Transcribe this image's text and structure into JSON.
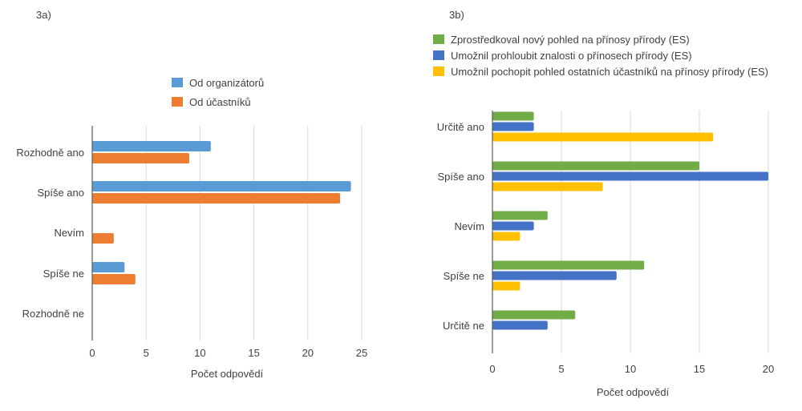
{
  "chart_data": [
    {
      "type": "bar",
      "orientation": "horizontal",
      "panel_label": "3a)",
      "categories": [
        "Rozhodně ano",
        "Spíše ano",
        "Nevím",
        "Spíše ne",
        "Rozhodně ne"
      ],
      "series": [
        {
          "name": "Od organizátorů",
          "color": "#5B9BD5",
          "values": [
            11,
            24,
            0,
            3,
            0
          ]
        },
        {
          "name": "Od účastníků",
          "color": "#ED7D31",
          "values": [
            9,
            23,
            2,
            4,
            0
          ]
        }
      ],
      "xlabel": "Počet odpovědí",
      "xlim": [
        0,
        25
      ],
      "xticks": [
        "0",
        "5",
        "10",
        "15",
        "20",
        "25"
      ],
      "grid": true,
      "legend": "top-center"
    },
    {
      "type": "bar",
      "orientation": "horizontal",
      "panel_label": "3b)",
      "categories": [
        "Určitě ano",
        "Spíše ano",
        "Nevím",
        "Spíše ne",
        "Určitě ne"
      ],
      "series": [
        {
          "name": "Zprostředkoval nový pohled na přínosy přírody (ES)",
          "color": "#70AD47",
          "values": [
            3,
            15,
            4,
            11,
            6
          ]
        },
        {
          "name": "Umožnil prohloubit znalosti o přínosech přírody (ES)",
          "color": "#4472C4",
          "values": [
            3,
            20,
            3,
            9,
            4
          ]
        },
        {
          "name": "Umožnil pochopit pohled ostatních účastníků na přínosy přírody (ES)",
          "color": "#FFC000",
          "values": [
            16,
            8,
            2,
            2,
            0
          ]
        }
      ],
      "xlabel": "Počet odpovědí",
      "xlim": [
        0,
        20
      ],
      "xticks": [
        "0",
        "5",
        "10",
        "15",
        "20"
      ],
      "grid": true,
      "legend": "top-left"
    }
  ]
}
